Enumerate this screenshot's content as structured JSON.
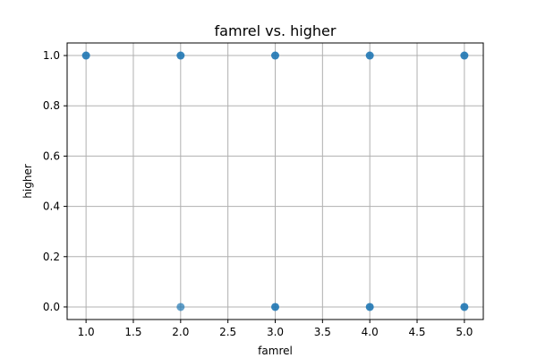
{
  "chart_data": {
    "type": "scatter",
    "title": "famrel vs. higher",
    "xlabel": "famrel",
    "ylabel": "higher",
    "xlim": [
      0.8,
      5.2
    ],
    "ylim": [
      -0.05,
      1.05
    ],
    "xticks": [
      "1.0",
      "1.5",
      "2.0",
      "2.5",
      "3.0",
      "3.5",
      "4.0",
      "4.5",
      "5.0"
    ],
    "yticks": [
      "0.0",
      "0.2",
      "0.4",
      "0.6",
      "0.8",
      "1.0"
    ],
    "grid": true,
    "color": "#1f77b4",
    "points": [
      {
        "x": 1,
        "y": 1,
        "opacity": 0.9
      },
      {
        "x": 2,
        "y": 1,
        "opacity": 0.9
      },
      {
        "x": 3,
        "y": 1,
        "opacity": 0.9
      },
      {
        "x": 4,
        "y": 1,
        "opacity": 0.9
      },
      {
        "x": 5,
        "y": 1,
        "opacity": 0.9
      },
      {
        "x": 2,
        "y": 0,
        "opacity": 0.7
      },
      {
        "x": 3,
        "y": 0,
        "opacity": 0.9
      },
      {
        "x": 4,
        "y": 0,
        "opacity": 0.9
      },
      {
        "x": 5,
        "y": 0,
        "opacity": 0.9
      }
    ]
  }
}
